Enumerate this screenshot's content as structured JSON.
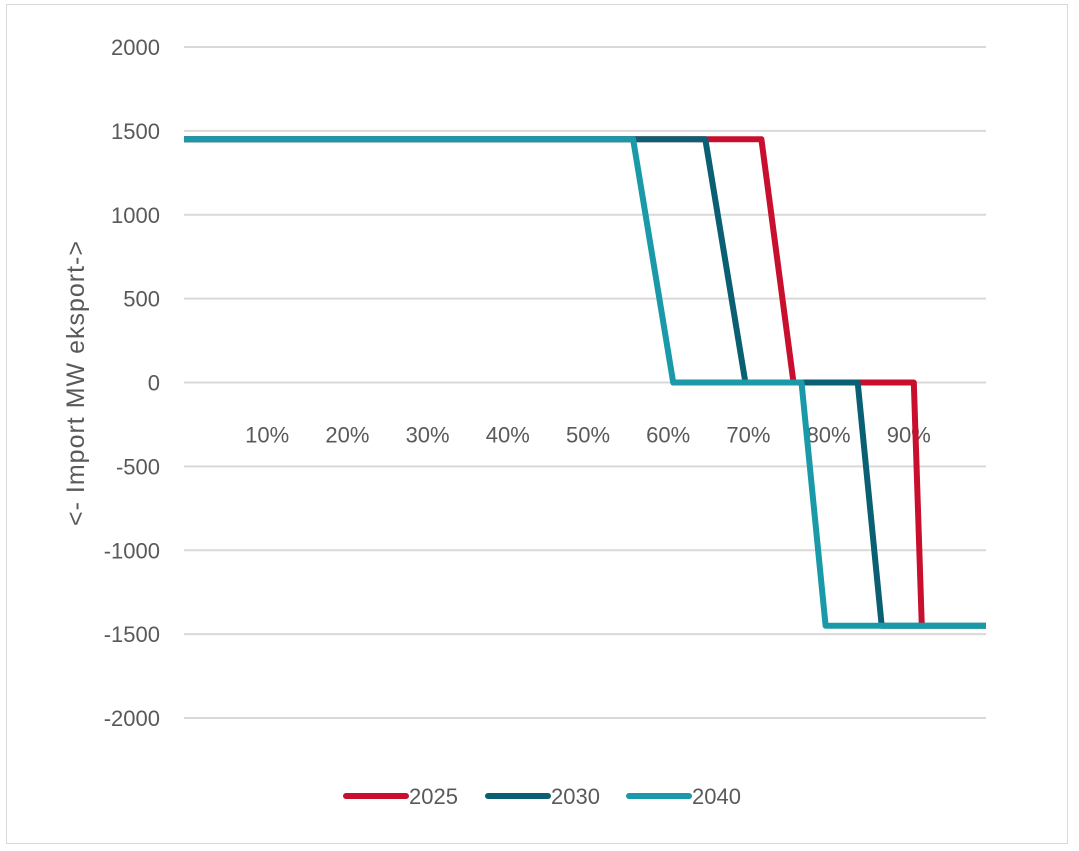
{
  "chart_data": {
    "type": "line",
    "title": "",
    "xlabel": "",
    "ylabel": "<- Import MW eksport->",
    "ylim": [
      -2000,
      2000
    ],
    "yticks": [
      2000,
      1500,
      1000,
      500,
      0,
      -500,
      -1000,
      -1500,
      -2000
    ],
    "xlim": [
      0,
      100
    ],
    "x_tick_values": [
      10,
      20,
      30,
      40,
      50,
      60,
      70,
      80,
      90
    ],
    "x_tick_labels": [
      "10%",
      "20%",
      "30%",
      "40%",
      "50%",
      "60%",
      "70%",
      "80%",
      "90%"
    ],
    "grid": "horizontal",
    "legend_position": "bottom",
    "series": [
      {
        "name": "2025",
        "color": "#c8102e",
        "x": [
          0,
          72,
          76,
          91,
          92
        ],
        "y": [
          1450,
          1450,
          0,
          0,
          -1450
        ]
      },
      {
        "name": "2030",
        "color": "#0b5f73",
        "x": [
          0,
          65,
          70,
          84,
          87,
          100
        ],
        "y": [
          1450,
          1450,
          0,
          0,
          -1450,
          -1450
        ]
      },
      {
        "name": "2040",
        "color": "#1a9aa8",
        "x": [
          0,
          56,
          61,
          77,
          80,
          100
        ],
        "y": [
          1450,
          1450,
          0,
          0,
          -1450,
          -1450
        ]
      }
    ]
  }
}
